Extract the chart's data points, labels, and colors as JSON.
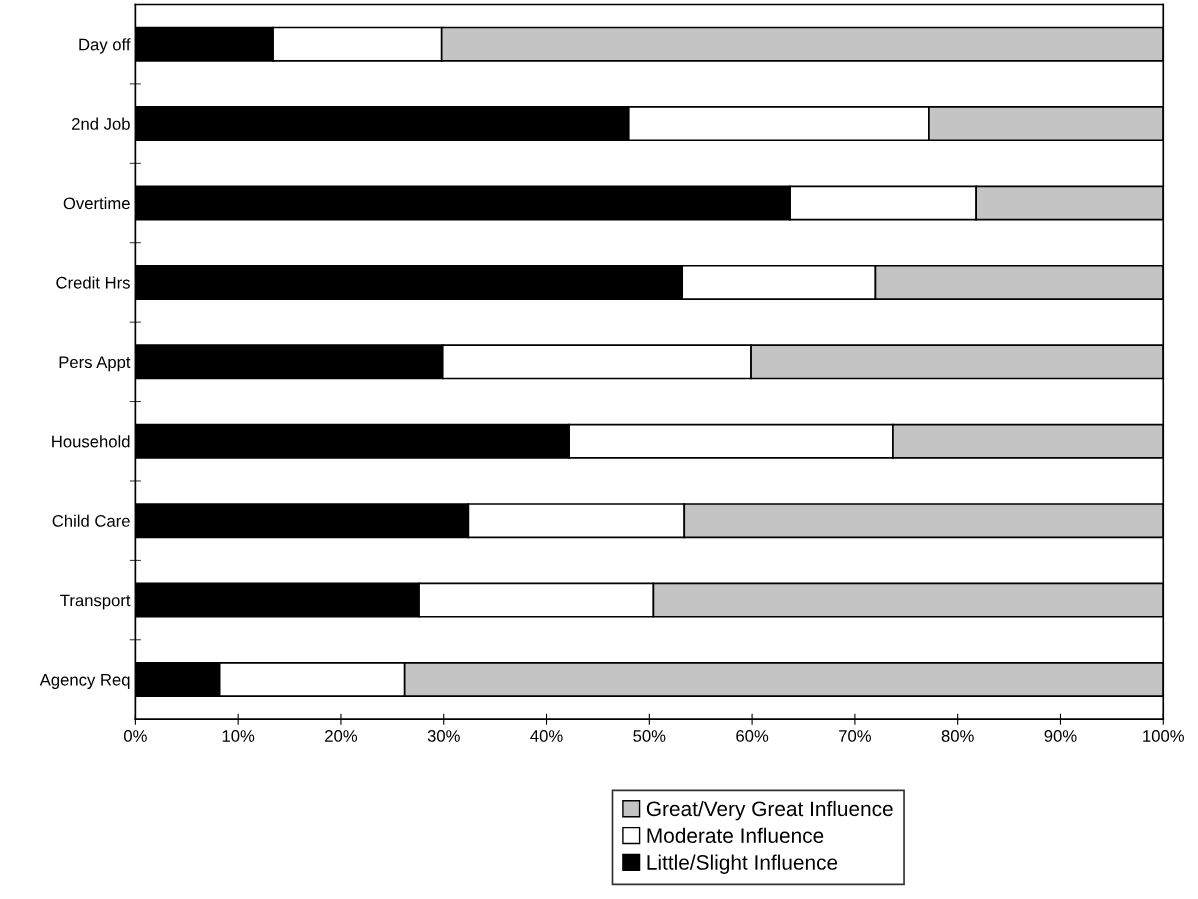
{
  "chart_data": {
    "type": "bar",
    "orientation": "horizontal",
    "stacked": true,
    "categories": [
      "Day off",
      "2nd Job",
      "Overtime",
      "Credit Hrs",
      "Pers Appt",
      "Household",
      "Child Care",
      "Transport",
      "Agency Req"
    ],
    "series": [
      {
        "name": "Little/Slight Influence",
        "color": "#000000",
        "values": [
          13.4,
          48.0,
          63.7,
          53.2,
          29.9,
          42.2,
          32.4,
          27.6,
          8.2
        ]
      },
      {
        "name": "Moderate Influence",
        "color": "#ffffff",
        "values": [
          16.4,
          29.2,
          18.1,
          18.8,
          30.0,
          31.5,
          21.0,
          22.8,
          18.0
        ]
      },
      {
        "name": "Great/Very Great Influence",
        "color": "#c4c4c4",
        "values": [
          70.2,
          22.8,
          18.2,
          28.0,
          40.1,
          26.3,
          46.6,
          49.6,
          73.8
        ]
      }
    ],
    "xlim": [
      0,
      100
    ],
    "xticks": [
      {
        "value": 0,
        "label": "0%"
      },
      {
        "value": 10,
        "label": "10%"
      },
      {
        "value": 20,
        "label": "20%"
      },
      {
        "value": 30,
        "label": "30%"
      },
      {
        "value": 40,
        "label": "40%"
      },
      {
        "value": 50,
        "label": "50%"
      },
      {
        "value": 60,
        "label": "60%"
      },
      {
        "value": 70,
        "label": "70%"
      },
      {
        "value": 80,
        "label": "80%"
      },
      {
        "value": 90,
        "label": "90%"
      },
      {
        "value": 100,
        "label": "100%"
      }
    ],
    "grid": false,
    "legend": "bottom"
  }
}
